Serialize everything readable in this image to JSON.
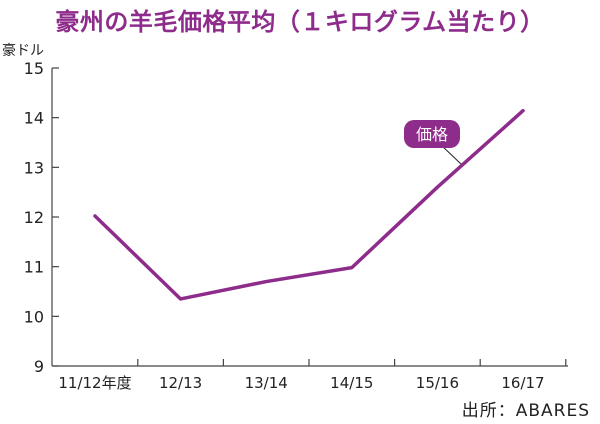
{
  "chart_data": {
    "type": "line",
    "title": "豪州の羊毛価格平均（１キログラム当たり）",
    "ylabel": "豪ドル",
    "categories": [
      "11/12年度",
      "12/13",
      "13/14",
      "14/15",
      "15/16",
      "16/17"
    ],
    "series": [
      {
        "name": "価格",
        "values": [
          12.02,
          10.35,
          10.7,
          10.98,
          12.6,
          14.14
        ]
      }
    ],
    "ylim": [
      9,
      15
    ],
    "yticks": [
      9,
      10,
      11,
      12,
      13,
      14,
      15
    ],
    "grid": false,
    "line_color": "#8e2c8c",
    "source": "出所：ABARES"
  }
}
